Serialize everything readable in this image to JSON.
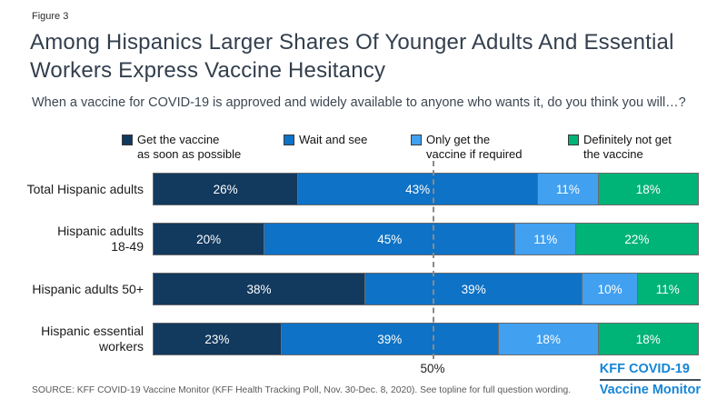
{
  "figure_label": "Figure 3",
  "title": "Among Hispanics Larger Shares Of Younger Adults And Essential Workers Express Vaccine Hesitancy",
  "question": "When a vaccine for COVID-19 is approved and widely available to anyone who wants it, do you think you will…?",
  "legend": [
    {
      "label": "Get the vaccine\nas soon as possible",
      "color": "#12395E"
    },
    {
      "label": "Wait and see",
      "color": "#0E72C6"
    },
    {
      "label": "Only get the\nvaccine if required",
      "color": "#41A0F0"
    },
    {
      "label": "Definitely not get\nthe vaccine",
      "color": "#00B377"
    }
  ],
  "chart_data": {
    "type": "bar",
    "stacked": true,
    "orientation": "horizontal",
    "categories": [
      "Total Hispanic adults",
      "Hispanic adults\n18-49",
      "Hispanic adults 50+",
      "Hispanic essential\nworkers"
    ],
    "series": [
      {
        "name": "Get the vaccine as soon as possible",
        "color": "#12395E",
        "values": [
          26,
          20,
          38,
          23
        ]
      },
      {
        "name": "Wait and see",
        "color": "#0E72C6",
        "values": [
          43,
          45,
          39,
          39
        ]
      },
      {
        "name": "Only get the vaccine if required",
        "color": "#41A0F0",
        "values": [
          11,
          11,
          10,
          18
        ]
      },
      {
        "name": "Definitely not get the vaccine",
        "color": "#00B377",
        "values": [
          18,
          22,
          11,
          18
        ]
      }
    ],
    "value_suffix": "%",
    "xlim": [
      0,
      100
    ],
    "grid": false,
    "legend_position": "top",
    "reference_line": {
      "value": 50,
      "label": "50%"
    }
  },
  "source": "SOURCE: KFF COVID-19 Vaccine Monitor (KFF Health Tracking Poll, Nov. 30-Dec. 8, 2020). See topline for full question wording.",
  "logo": {
    "line1": "KFF COVID-19",
    "line2": "Vaccine Monitor"
  }
}
